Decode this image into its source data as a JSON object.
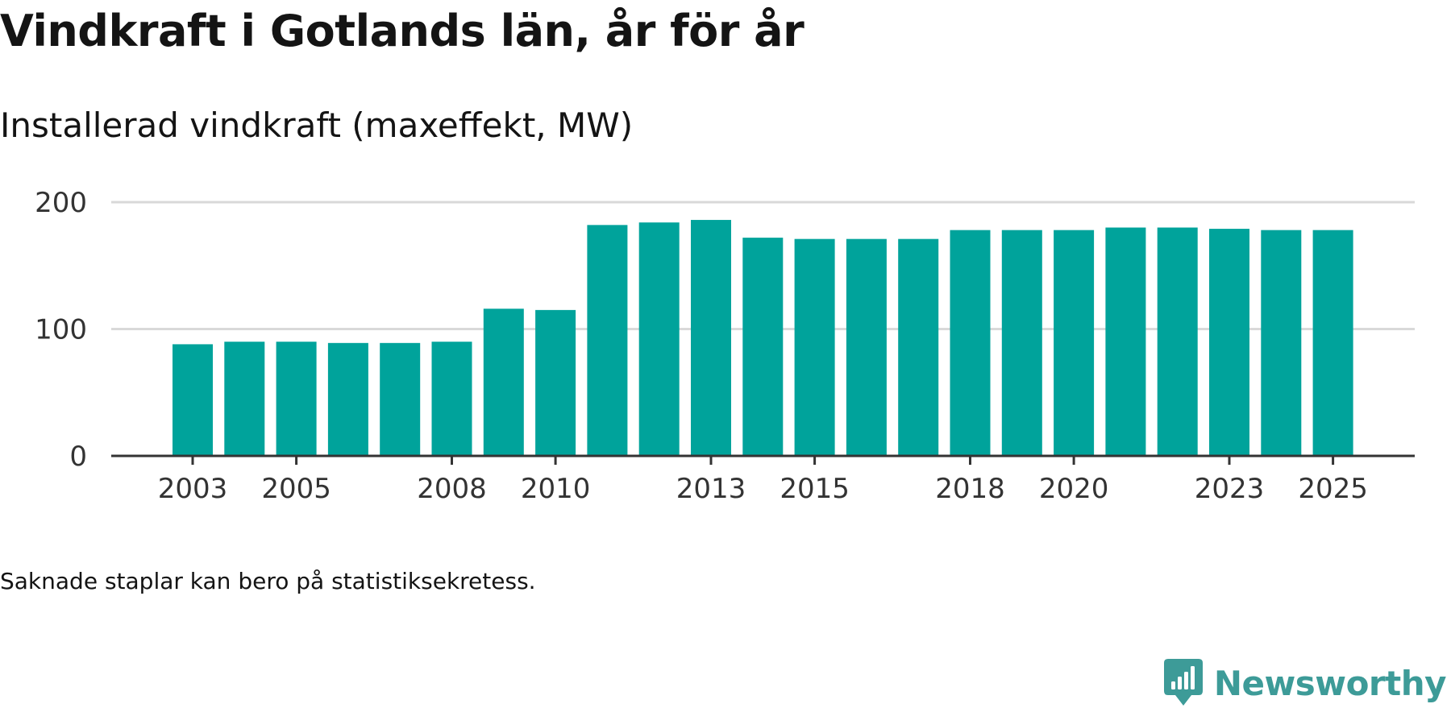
{
  "title": "Vindkraft i Gotlands län, år för år",
  "subtitle": "Installerad vindkraft (maxeffekt, MW)",
  "note": "Saknade staplar kan bero på statistiksekretess.",
  "brand": {
    "name": "Newsworthy",
    "icon": "newsworthy-logo-icon",
    "color": "#3d9b98"
  },
  "colors": {
    "bar": "#00a39b",
    "grid": "#d9d9d9",
    "axis": "#333333",
    "tick_label": "#333333"
  },
  "chart_data": {
    "type": "bar",
    "title": "Vindkraft i Gotlands län, år för år",
    "ylabel": "Installerad vindkraft (maxeffekt, MW)",
    "xlabel": "",
    "categories": [
      "2003",
      "2004",
      "2005",
      "2006",
      "2007",
      "2008",
      "2009",
      "2010",
      "2011",
      "2012",
      "2013",
      "2014",
      "2015",
      "2016",
      "2017",
      "2018",
      "2019",
      "2020",
      "2021",
      "2022",
      "2023",
      "2024",
      "2025"
    ],
    "values": [
      88,
      90,
      90,
      89,
      89,
      90,
      116,
      115,
      182,
      184,
      186,
      172,
      171,
      171,
      171,
      178,
      178,
      178,
      180,
      180,
      179,
      178,
      178
    ],
    "ylim": [
      0,
      200
    ],
    "yticks": [
      0,
      100,
      200
    ],
    "xtick_labels": [
      "2003",
      "2005",
      "2008",
      "2010",
      "2013",
      "2015",
      "2018",
      "2020",
      "2023",
      "2025"
    ],
    "grid": true,
    "legend": "none"
  }
}
